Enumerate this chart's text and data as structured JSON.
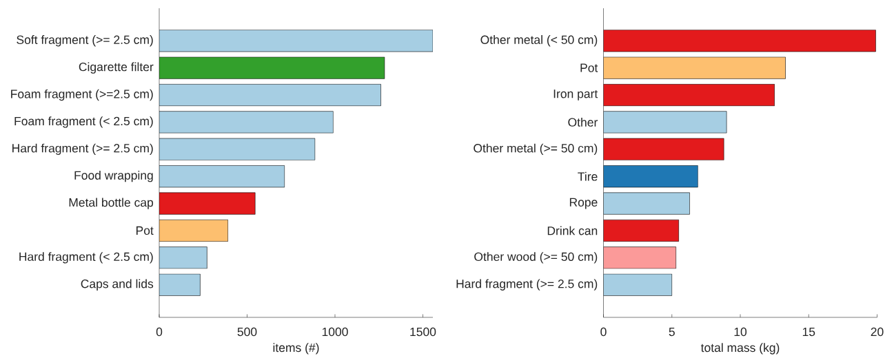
{
  "chart_data": [
    {
      "type": "bar",
      "orientation": "horizontal",
      "categories": [
        "Soft fragment (>= 2.5 cm)",
        "Cigarette filter",
        "Foam fragment (>=2.5 cm)",
        "Foam fragment (< 2.5 cm)",
        "Hard fragment  (>= 2.5 cm)",
        "Food wrapping",
        "Metal bottle cap",
        "Pot",
        "Hard fragment (< 2.5 cm)",
        "Caps and lids"
      ],
      "values": [
        1557,
        1282,
        1261,
        990,
        886,
        713,
        546,
        391,
        272,
        233
      ],
      "colors": [
        "#a6cee3",
        "#33a02c",
        "#a6cee3",
        "#a6cee3",
        "#a6cee3",
        "#a6cee3",
        "#e31a1c",
        "#fdbf6f",
        "#a6cee3",
        "#a6cee3"
      ],
      "xlabel": "items (#)",
      "xlim": [
        0,
        1557
      ],
      "xticks": [
        0,
        500,
        1000,
        1500
      ]
    },
    {
      "type": "bar",
      "orientation": "horizontal",
      "categories": [
        "Other metal (< 50 cm)",
        "Pot",
        "Iron part",
        "Other",
        "Other metal (>= 50 cm)",
        "Tire",
        "Rope",
        "Drink can",
        "Other wood (>= 50 cm)",
        "Hard fragment  (>= 2.5 cm)"
      ],
      "values": [
        19.9,
        13.3,
        12.5,
        9.0,
        8.8,
        6.9,
        6.3,
        5.5,
        5.3,
        5.0
      ],
      "colors": [
        "#e31a1c",
        "#fdbf6f",
        "#e31a1c",
        "#a6cee3",
        "#e31a1c",
        "#1f78b4",
        "#a6cee3",
        "#e31a1c",
        "#fb9a99",
        "#a6cee3"
      ],
      "xlabel": "total mass (kg)",
      "xlim": [
        0,
        20
      ],
      "xticks": [
        0,
        5,
        10,
        15,
        20
      ]
    }
  ]
}
